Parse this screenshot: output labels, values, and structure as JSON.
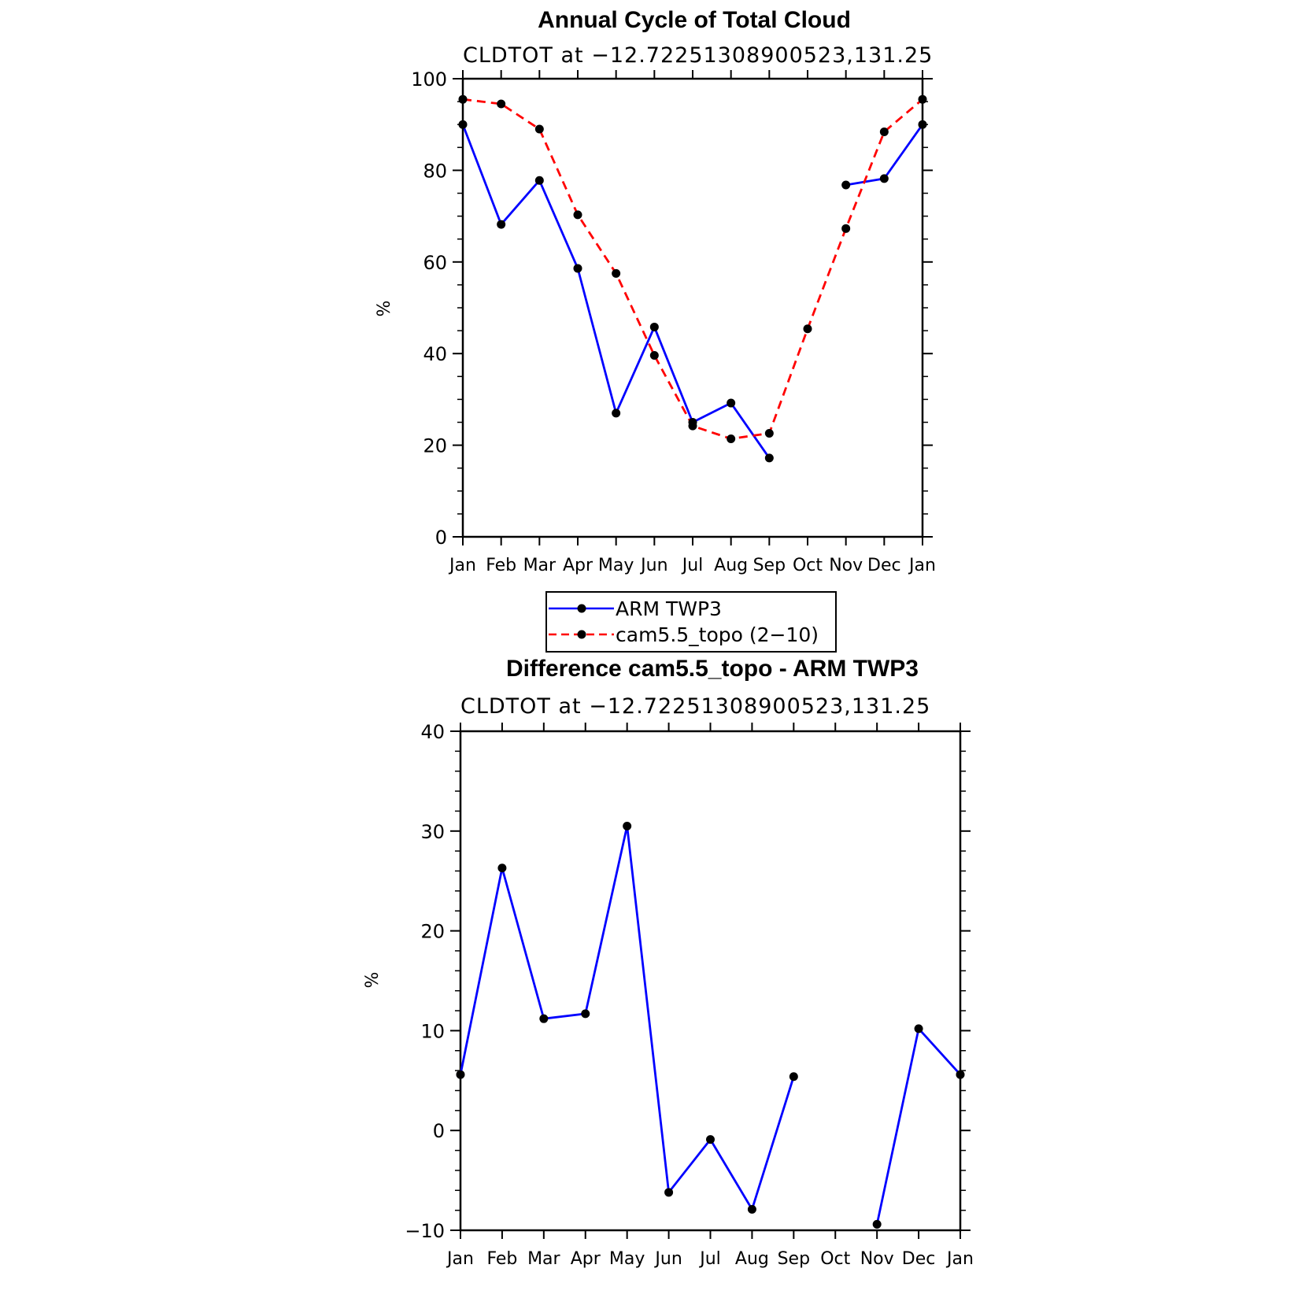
{
  "chart_data": [
    {
      "type": "line",
      "title": "Annual Cycle of Total Cloud",
      "subtitle": "CLDTOT at −12.72251308900523,131.25",
      "ylabel": "%",
      "xlabel": "",
      "ylim": [
        0,
        100
      ],
      "yticks": [
        "0",
        "20",
        "40",
        "60",
        "80",
        "100"
      ],
      "categories": [
        "Jan",
        "Feb",
        "Mar",
        "Apr",
        "May",
        "Jun",
        "Jul",
        "Aug",
        "Sep",
        "Oct",
        "Nov",
        "Dec",
        "Jan"
      ],
      "series": [
        {
          "name": "ARM TWP3",
          "color": "#0000ff",
          "dash": "solid",
          "values": [
            90,
            68.2,
            77.8,
            58.6,
            27,
            45.8,
            25,
            29.2,
            17.2,
            null,
            76.8,
            78.2,
            90
          ]
        },
        {
          "name": "cam5.5_topo (2−10)",
          "color": "#ff0000",
          "dash": "dashed",
          "values": [
            95.5,
            94.5,
            89,
            70.3,
            57.5,
            39.6,
            24.2,
            21.4,
            22.6,
            45.4,
            67.3,
            88.4,
            95.5
          ]
        }
      ],
      "legend": "below"
    },
    {
      "type": "line",
      "title": "Difference cam5.5_topo - ARM TWP3",
      "subtitle": "CLDTOT at −12.72251308900523,131.25",
      "ylabel": "%",
      "xlabel": "",
      "ylim": [
        -10,
        40
      ],
      "yticks": [
        "−10",
        "0",
        "10",
        "20",
        "30",
        "40"
      ],
      "categories": [
        "Jan",
        "Feb",
        "Mar",
        "Apr",
        "May",
        "Jun",
        "Jul",
        "Aug",
        "Sep",
        "Oct",
        "Nov",
        "Dec",
        "Jan"
      ],
      "series": [
        {
          "color": "#0000ff",
          "dash": "solid",
          "values": [
            5.6,
            26.3,
            11.2,
            11.7,
            30.5,
            -6.2,
            -0.9,
            -7.9,
            5.4,
            null,
            -9.4,
            10.2,
            5.6
          ]
        }
      ]
    }
  ]
}
